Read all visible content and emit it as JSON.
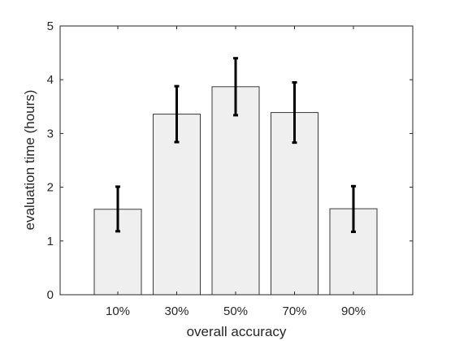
{
  "chart_data": {
    "type": "bar",
    "title": "",
    "xlabel": "overall accuracy",
    "ylabel": "evaluation time (hours)",
    "categories": [
      "10%",
      "30%",
      "50%",
      "70%",
      "90%"
    ],
    "values": [
      1.59,
      3.36,
      3.87,
      3.39,
      1.6
    ],
    "error_low": [
      1.18,
      2.84,
      3.34,
      2.83,
      1.17
    ],
    "error_high": [
      2.01,
      3.88,
      4.4,
      3.95,
      2.02
    ],
    "ylim": [
      0,
      5
    ],
    "yticks": [
      "0",
      "1",
      "2",
      "3",
      "4",
      "5"
    ],
    "grid": false,
    "bar_color": "#efefef",
    "bar_edge_color": "#3a3a3a",
    "errorbar_color": "#000000"
  }
}
